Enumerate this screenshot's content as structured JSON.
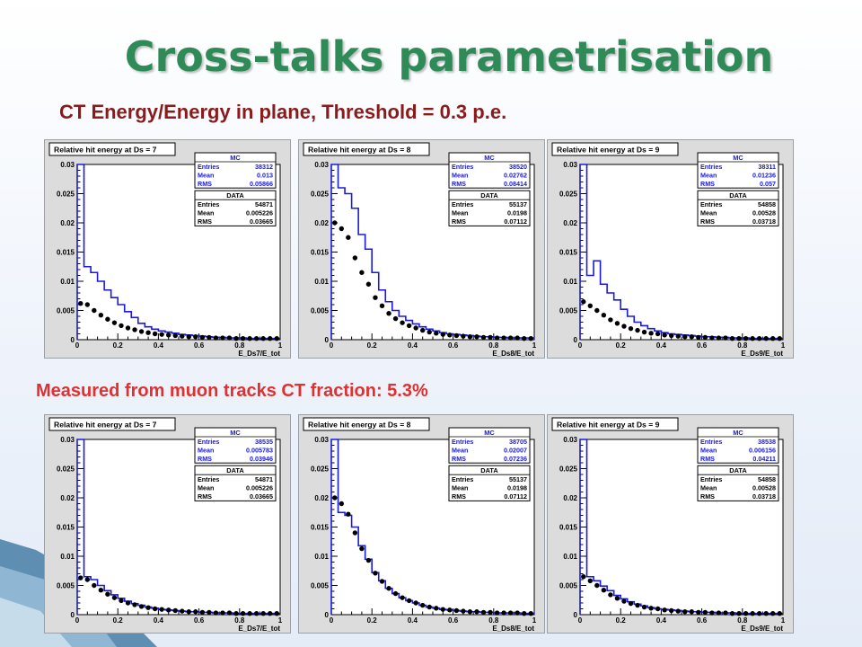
{
  "slide": {
    "title": "Cross-talks parametrisation",
    "subtitle_top": "CT Energy/Energy in plane, Threshold = 0.3 p.e.",
    "subtitle_bottom": "Measured from muon tracks CT fraction: 5.3%"
  },
  "colors": {
    "title": "#2e8b57",
    "subtitle_top": "#8b1a1a",
    "subtitle_bottom": "#e03030",
    "mc_line": "#1a1adc",
    "data_marker": "#000000",
    "plot_frame": "#dcdcdc"
  },
  "chart_data": [
    {
      "type": "line",
      "title": "Relative hit energy at Ds = 7",
      "xlabel": "E_Ds7/E_tot",
      "ylabel": "",
      "xlim": [
        0,
        1
      ],
      "ylim": [
        0,
        0.03
      ],
      "xticks": [
        "0",
        "0.2",
        "0.4",
        "0.6",
        "0.8",
        "1"
      ],
      "yticks": [
        "0",
        "0.005",
        "0.01",
        "0.015",
        "0.02",
        "0.025",
        "0.03"
      ],
      "stats": [
        {
          "name": "MC",
          "rows": [
            [
              "Entries",
              "38312"
            ],
            [
              "Mean",
              "0.013"
            ],
            [
              "RMS",
              "0.05866"
            ]
          ]
        },
        {
          "name": "DATA",
          "rows": [
            [
              "Entries",
              "54871"
            ],
            [
              "Mean",
              "0.005226"
            ],
            [
              "RMS",
              "0.03665"
            ]
          ]
        }
      ],
      "mc": [
        0.03,
        0.0125,
        0.0115,
        0.01,
        0.0085,
        0.0072,
        0.006,
        0.0048,
        0.0038,
        0.0028,
        0.0022,
        0.0018,
        0.0015,
        0.0013,
        0.0011,
        0.0009,
        0.0008,
        0.0007,
        0.0006,
        0.0005,
        0.0004,
        0.0004,
        0.0003,
        0.0003,
        0.0003,
        0.0002,
        0.0002,
        0.0002,
        0.0002,
        0.0002
      ],
      "data": [
        0.0062,
        0.006,
        0.005,
        0.0042,
        0.0035,
        0.0029,
        0.0024,
        0.002,
        0.0017,
        0.0014,
        0.0012,
        0.001,
        0.0009,
        0.0008,
        0.0007,
        0.0006,
        0.0005,
        0.0005,
        0.0004,
        0.0004,
        0.0003,
        0.0003,
        0.0003,
        0.0002,
        0.0002,
        0.0002,
        0.0002,
        0.0002,
        0.0002,
        0.0002
      ]
    },
    {
      "type": "line",
      "title": "Relative hit energy at Ds = 8",
      "xlabel": "E_Ds8/E_tot",
      "ylabel": "",
      "xlim": [
        0,
        1
      ],
      "ylim": [
        0,
        0.03
      ],
      "xticks": [
        "0",
        "0.2",
        "0.4",
        "0.6",
        "0.8",
        "1"
      ],
      "yticks": [
        "0",
        "0.005",
        "0.01",
        "0.015",
        "0.02",
        "0.025",
        "0.03"
      ],
      "stats": [
        {
          "name": "MC",
          "rows": [
            [
              "Entries",
              "38520"
            ],
            [
              "Mean",
              "0.02762"
            ],
            [
              "RMS",
              "0.08414"
            ]
          ]
        },
        {
          "name": "DATA",
          "rows": [
            [
              "Entries",
              "55137"
            ],
            [
              "Mean",
              "0.0198"
            ],
            [
              "RMS",
              "0.07112"
            ]
          ]
        }
      ],
      "mc": [
        0.03,
        0.026,
        0.025,
        0.0225,
        0.018,
        0.0155,
        0.0115,
        0.0085,
        0.0065,
        0.005,
        0.004,
        0.0033,
        0.0027,
        0.0022,
        0.0018,
        0.0015,
        0.0012,
        0.001,
        0.0009,
        0.0008,
        0.0007,
        0.0006,
        0.0005,
        0.0005,
        0.0004,
        0.0004,
        0.0003,
        0.0003,
        0.0003,
        0.0003
      ],
      "data": [
        0.02,
        0.019,
        0.0175,
        0.014,
        0.0115,
        0.0095,
        0.0072,
        0.0058,
        0.0045,
        0.0036,
        0.0029,
        0.0024,
        0.002,
        0.0016,
        0.0013,
        0.0011,
        0.0009,
        0.0008,
        0.0007,
        0.0006,
        0.0005,
        0.0005,
        0.0004,
        0.0004,
        0.0003,
        0.0003,
        0.0003,
        0.0003,
        0.0002,
        0.0002
      ]
    },
    {
      "type": "line",
      "title": "Relative hit energy at Ds = 9",
      "xlabel": "E_Ds9/E_tot",
      "ylabel": "",
      "xlim": [
        0,
        1
      ],
      "ylim": [
        0,
        0.03
      ],
      "xticks": [
        "0",
        "0.2",
        "0.4",
        "0.6",
        "0.8",
        "1"
      ],
      "yticks": [
        "0",
        "0.005",
        "0.01",
        "0.015",
        "0.02",
        "0.025",
        "0.03"
      ],
      "stats": [
        {
          "name": "MC",
          "rows": [
            [
              "Entries",
              "38311"
            ],
            [
              "Mean",
              "0.01236"
            ],
            [
              "RMS",
              "0.057"
            ]
          ]
        },
        {
          "name": "DATA",
          "rows": [
            [
              "Entries",
              "54858"
            ],
            [
              "Mean",
              "0.00528"
            ],
            [
              "RMS",
              "0.03718"
            ]
          ]
        }
      ],
      "mc": [
        0.03,
        0.011,
        0.0135,
        0.0095,
        0.008,
        0.0068,
        0.0052,
        0.004,
        0.003,
        0.0024,
        0.0019,
        0.0015,
        0.0012,
        0.001,
        0.0009,
        0.0008,
        0.0007,
        0.0006,
        0.0005,
        0.0005,
        0.0004,
        0.0004,
        0.0003,
        0.0003,
        0.0003,
        0.0002,
        0.0002,
        0.0002,
        0.0002,
        0.0002
      ],
      "data": [
        0.0065,
        0.0058,
        0.005,
        0.0042,
        0.0034,
        0.0028,
        0.0023,
        0.0019,
        0.0016,
        0.0013,
        0.0011,
        0.001,
        0.0008,
        0.0007,
        0.0006,
        0.0005,
        0.0005,
        0.0004,
        0.0004,
        0.0003,
        0.0003,
        0.0003,
        0.0002,
        0.0002,
        0.0002,
        0.0002,
        0.0002,
        0.0002,
        0.0002,
        0.0002
      ]
    },
    {
      "type": "line",
      "title": "Relative hit energy at Ds = 7",
      "xlabel": "E_Ds7/E_tot",
      "ylabel": "",
      "xlim": [
        0,
        1
      ],
      "ylim": [
        0,
        0.03
      ],
      "xticks": [
        "0",
        "0.2",
        "0.4",
        "0.6",
        "0.8",
        "1"
      ],
      "yticks": [
        "0",
        "0.005",
        "0.01",
        "0.015",
        "0.02",
        "0.025",
        "0.03"
      ],
      "stats": [
        {
          "name": "MC",
          "rows": [
            [
              "Entries",
              "38535"
            ],
            [
              "Mean",
              "0.005783"
            ],
            [
              "RMS",
              "0.03946"
            ]
          ]
        },
        {
          "name": "DATA",
          "rows": [
            [
              "Entries",
              "54871"
            ],
            [
              "Mean",
              "0.005226"
            ],
            [
              "RMS",
              "0.03665"
            ]
          ]
        }
      ],
      "mc": [
        0.03,
        0.0065,
        0.006,
        0.005,
        0.0041,
        0.0034,
        0.0028,
        0.0023,
        0.0019,
        0.0016,
        0.0013,
        0.0011,
        0.0009,
        0.0008,
        0.0007,
        0.0006,
        0.0005,
        0.0005,
        0.0004,
        0.0004,
        0.0003,
        0.0003,
        0.0003,
        0.0002,
        0.0002,
        0.0002,
        0.0002,
        0.0002,
        0.0002,
        0.0002
      ],
      "data": [
        0.0063,
        0.006,
        0.005,
        0.0042,
        0.0035,
        0.0029,
        0.0024,
        0.002,
        0.0017,
        0.0014,
        0.0012,
        0.001,
        0.0009,
        0.0008,
        0.0007,
        0.0006,
        0.0005,
        0.0005,
        0.0004,
        0.0004,
        0.0003,
        0.0003,
        0.0003,
        0.0002,
        0.0002,
        0.0002,
        0.0002,
        0.0002,
        0.0002,
        0.0002
      ]
    },
    {
      "type": "line",
      "title": "Relative hit energy at Ds = 8",
      "xlabel": "E_Ds8/E_tot",
      "ylabel": "",
      "xlim": [
        0,
        1
      ],
      "ylim": [
        0,
        0.03
      ],
      "xticks": [
        "0",
        "0.2",
        "0.4",
        "0.6",
        "0.8",
        "1"
      ],
      "yticks": [
        "0",
        "0.005",
        "0.01",
        "0.015",
        "0.02",
        "0.025",
        "0.03"
      ],
      "stats": [
        {
          "name": "MC",
          "rows": [
            [
              "Entries",
              "38705"
            ],
            [
              "Mean",
              "0.02007"
            ],
            [
              "RMS",
              "0.07236"
            ]
          ]
        },
        {
          "name": "DATA",
          "rows": [
            [
              "Entries",
              "55137"
            ],
            [
              "Mean",
              "0.0198"
            ],
            [
              "RMS",
              "0.07112"
            ]
          ]
        }
      ],
      "mc": [
        0.03,
        0.0175,
        0.017,
        0.015,
        0.0118,
        0.0095,
        0.0072,
        0.0058,
        0.0045,
        0.0036,
        0.0029,
        0.0024,
        0.002,
        0.0016,
        0.0013,
        0.0011,
        0.0009,
        0.0008,
        0.0007,
        0.0006,
        0.0005,
        0.0005,
        0.0004,
        0.0004,
        0.0003,
        0.0003,
        0.0003,
        0.0003,
        0.0002,
        0.0002
      ],
      "data": [
        0.02,
        0.019,
        0.0172,
        0.014,
        0.0113,
        0.0093,
        0.0071,
        0.0057,
        0.0045,
        0.0036,
        0.0029,
        0.0024,
        0.002,
        0.0016,
        0.0013,
        0.0011,
        0.0009,
        0.0008,
        0.0007,
        0.0006,
        0.0005,
        0.0005,
        0.0004,
        0.0004,
        0.0003,
        0.0003,
        0.0003,
        0.0003,
        0.0002,
        0.0002
      ]
    },
    {
      "type": "line",
      "title": "Relative hit energy at Ds = 9",
      "xlabel": "E_Ds9/E_tot",
      "ylabel": "",
      "xlim": [
        0,
        1
      ],
      "ylim": [
        0,
        0.03
      ],
      "xticks": [
        "0",
        "0.2",
        "0.4",
        "0.6",
        "0.8",
        "1"
      ],
      "yticks": [
        "0",
        "0.005",
        "0.01",
        "0.015",
        "0.02",
        "0.025",
        "0.03"
      ],
      "stats": [
        {
          "name": "MC",
          "rows": [
            [
              "Entries",
              "38538"
            ],
            [
              "Mean",
              "0.006156"
            ],
            [
              "RMS",
              "0.04211"
            ]
          ]
        },
        {
          "name": "DATA",
          "rows": [
            [
              "Entries",
              "54858"
            ],
            [
              "Mean",
              "0.00528"
            ],
            [
              "RMS",
              "0.03718"
            ]
          ]
        }
      ],
      "mc": [
        0.03,
        0.0065,
        0.0058,
        0.0049,
        0.0041,
        0.0033,
        0.0027,
        0.0022,
        0.0018,
        0.0015,
        0.0012,
        0.001,
        0.0009,
        0.0008,
        0.0007,
        0.0006,
        0.0005,
        0.0005,
        0.0004,
        0.0004,
        0.0003,
        0.0003,
        0.0003,
        0.0002,
        0.0002,
        0.0002,
        0.0002,
        0.0002,
        0.0002,
        0.0002
      ],
      "data": [
        0.0065,
        0.0058,
        0.005,
        0.0042,
        0.0034,
        0.0028,
        0.0023,
        0.0019,
        0.0016,
        0.0013,
        0.0011,
        0.001,
        0.0008,
        0.0007,
        0.0006,
        0.0005,
        0.0005,
        0.0004,
        0.0004,
        0.0003,
        0.0003,
        0.0003,
        0.0002,
        0.0002,
        0.0002,
        0.0002,
        0.0002,
        0.0002,
        0.0002,
        0.0002
      ]
    }
  ]
}
